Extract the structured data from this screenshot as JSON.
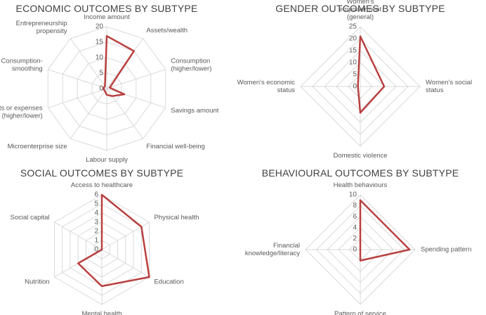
{
  "chart_data": [
    {
      "type": "radar",
      "title": "ECONOMIC OUTCOMES BY SUBTYPE",
      "categories": [
        "Income amount",
        "Assets/wealth",
        "Consumption (higher/lower)",
        "Savings amount",
        "Financial well-being",
        "Labour supply",
        "Microenterprise size",
        "Costs or expenses (higher/lower)",
        "Consumption-smoothing",
        "Entrepreneurship propensity"
      ],
      "series": [
        {
          "color": "#b94040",
          "values": [
            17,
            15,
            1,
            6,
            3,
            2,
            1,
            1,
            1,
            1
          ]
        }
      ],
      "ylim": [
        0,
        20
      ],
      "yticks": [
        0,
        5,
        10,
        15,
        20
      ],
      "grid": true
    },
    {
      "type": "radar",
      "title": "GENDER OUTCOMES BY SUBTYPE",
      "categories": [
        "Women's empowerment (general)",
        "Women's social status",
        "Domestic violence",
        "Women's economic status"
      ],
      "series": [
        {
          "color": "#b94040",
          "values": [
            21,
            10,
            11,
            1
          ]
        }
      ],
      "ylim": [
        0,
        25
      ],
      "yticks": [
        0,
        5,
        10,
        15,
        20,
        25
      ],
      "grid": true
    },
    {
      "type": "radar",
      "title": "SOCIAL OUTCOMES BY SUBTYPE",
      "categories": [
        "Access to healthcare",
        "Physical health",
        "Education",
        "Mental health",
        "Nutrition",
        "Social capital"
      ],
      "series": [
        {
          "color": "#b94040",
          "values": [
            6,
            5,
            6,
            4,
            3,
            0
          ]
        }
      ],
      "ylim": [
        0,
        6
      ],
      "yticks": [
        0,
        1,
        2,
        3,
        4,
        5,
        6
      ],
      "grid": true
    },
    {
      "type": "radar",
      "title": "BEHAVIOURAL OUTCOMES BY SUBTYPE",
      "categories": [
        "Health behaviours",
        "Spending pattern",
        "Pattern of service usage",
        "Financial knowledge/literacy"
      ],
      "series": [
        {
          "color": "#b94040",
          "values": [
            9,
            9,
            2,
            0
          ]
        }
      ],
      "ylim": [
        0,
        10
      ],
      "yticks": [
        0,
        2,
        4,
        6,
        8,
        10
      ],
      "grid": true
    }
  ]
}
